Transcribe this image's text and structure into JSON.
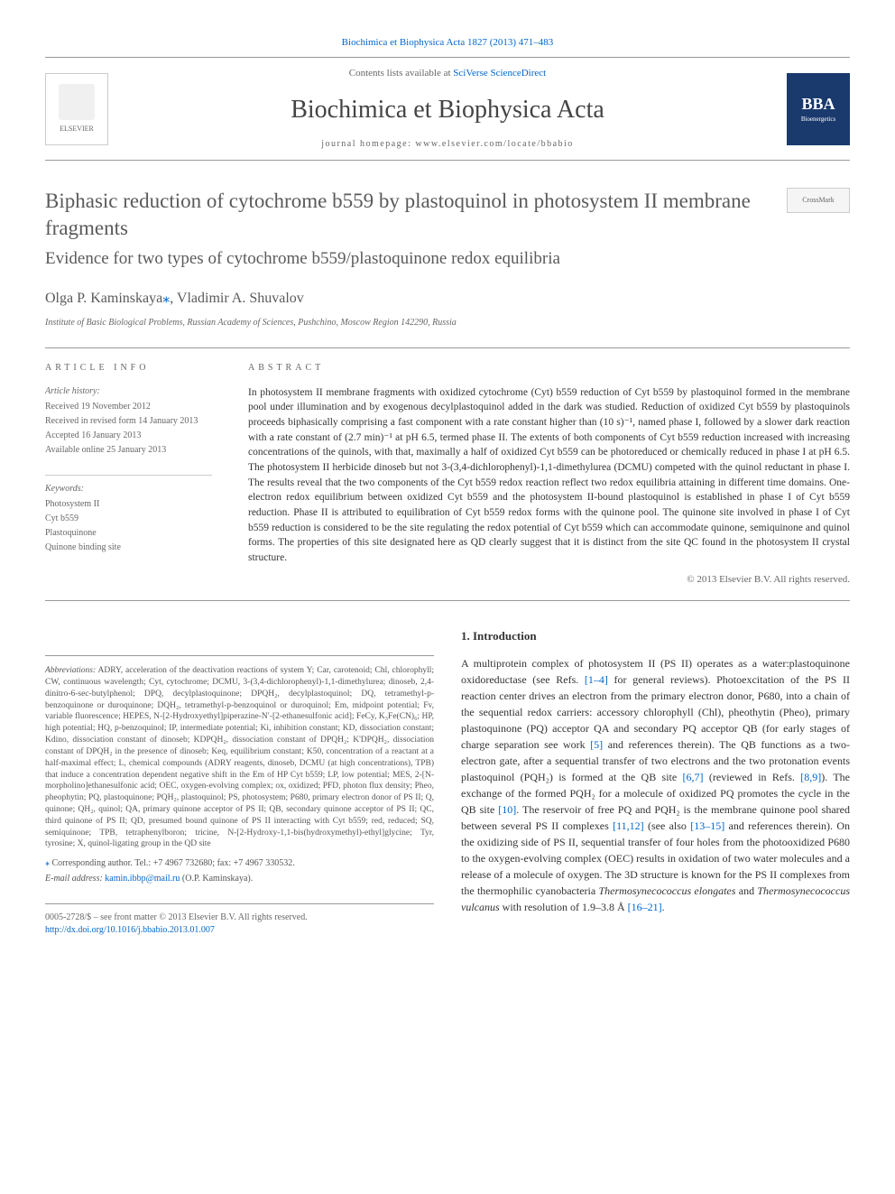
{
  "top_citation": "Biochimica et Biophysica Acta 1827 (2013) 471–483",
  "header": {
    "contents_available": "Contents lists available at",
    "sciverse": "SciVerse ScienceDirect",
    "journal_name": "Biochimica et Biophysica Acta",
    "homepage_prefix": "journal homepage:",
    "homepage_url": "www.elsevier.com/locate/bbabio",
    "elsevier_label": "ELSEVIER",
    "bba_label": "BBA",
    "bba_sub": "Bioenergetics"
  },
  "crossmark_label": "CrossMark",
  "title": "Biphasic reduction of cytochrome b559 by plastoquinol in photosystem II membrane fragments",
  "subtitle": "Evidence for two types of cytochrome b559/plastoquinone redox equilibria",
  "authors": "Olga P. Kaminskaya",
  "authors_star": "⁎",
  "authors_rest": ", Vladimir A. Shuvalov",
  "affiliation": "Institute of Basic Biological Problems, Russian Academy of Sciences, Pushchino, Moscow Region 142290, Russia",
  "article_info": {
    "heading": "ARTICLE INFO",
    "history_label": "Article history:",
    "received": "Received 19 November 2012",
    "revised": "Received in revised form 14 January 2013",
    "accepted": "Accepted 16 January 2013",
    "online": "Available online 25 January 2013",
    "keywords_label": "Keywords:",
    "keywords": [
      "Photosystem II",
      "Cyt b559",
      "Plastoquinone",
      "Quinone binding site"
    ]
  },
  "abstract": {
    "heading": "ABSTRACT",
    "text": "In photosystem II membrane fragments with oxidized cytochrome (Cyt) b559 reduction of Cyt b559 by plastoquinol formed in the membrane pool under illumination and by exogenous decylplastoquinol added in the dark was studied. Reduction of oxidized Cyt b559 by plastoquinols proceeds biphasically comprising a fast component with a rate constant higher than (10 s)⁻¹, named phase I, followed by a slower dark reaction with a rate constant of (2.7 min)⁻¹ at pH 6.5, termed phase II. The extents of both components of Cyt b559 reduction increased with increasing concentrations of the quinols, with that, maximally a half of oxidized Cyt b559 can be photoreduced or chemically reduced in phase I at pH 6.5. The photosystem II herbicide dinoseb but not 3-(3,4-dichlorophenyl)-1,1-dimethylurea (DCMU) competed with the quinol reductant in phase I. The results reveal that the two components of the Cyt b559 redox reaction reflect two redox equilibria attaining in different time domains. One-electron redox equilibrium between oxidized Cyt b559 and the photosystem II-bound plastoquinol is established in phase I of Cyt b559 reduction. Phase II is attributed to equilibration of Cyt b559 redox forms with the quinone pool. The quinone site involved in phase I of Cyt b559 reduction is considered to be the site regulating the redox potential of Cyt b559 which can accommodate quinone, semiquinone and quinol forms. The properties of this site designated here as QD clearly suggest that it is distinct from the site QC found in the photosystem II crystal structure.",
    "copyright": "© 2013 Elsevier B.V. All rights reserved."
  },
  "intro": {
    "heading": "1. Introduction",
    "p1_a": "A multiprotein complex of photosystem II (PS II) operates as a water:plastoquinone oxidoreductase (see Refs. ",
    "p1_ref1": "[1–4]",
    "p1_b": " for general reviews). Photoexcitation of the PS II reaction center drives an electron from the primary electron donor, P680, into a chain of the sequential redox carriers: accessory chlorophyll (Chl), pheothytin (Pheo), primary plastoquinone (PQ) acceptor QA and secondary PQ acceptor QB (for early stages of charge separation see work ",
    "p1_ref2": "[5]",
    "p1_c": " and references therein). The QB functions as a two-electron gate, after a sequential transfer of two electrons and the two protonation events plastoquinol (PQH₂) is formed at the QB site ",
    "p1_ref3": "[6,7]",
    "p1_d": " (reviewed in Refs. ",
    "p1_ref4": "[8,9]",
    "p1_e": "). The exchange of the formed PQH₂ for a molecule of oxidized PQ promotes the cycle in the QB site ",
    "p1_ref5": "[10]",
    "p1_f": ". The reservoir of free PQ and PQH₂ is the membrane quinone pool shared between several PS II complexes ",
    "p1_ref6": "[11,12]",
    "p1_g": " (see also ",
    "p1_ref7": "[13–15]",
    "p1_h": " and references therein). On the oxidizing side of PS II, sequential transfer of four holes from the photooxidized P680 to the oxygen-evolving complex (OEC) results in oxidation of two water molecules and a release of a molecule of oxygen. The 3D structure is known for the PS II complexes from the thermophilic cyanobacteria ",
    "p1_i": "Thermosynecococcus elongates",
    "p1_j": " and ",
    "p1_k": "Thermosynecococcus vulcanus",
    "p1_l": " with resolution of 1.9–3.8 Å ",
    "p1_ref8": "[16–21]",
    "p1_m": "."
  },
  "abbreviations": {
    "label": "Abbreviations:",
    "text": " ADRY, acceleration of the deactivation reactions of system Y; Car, carotenoid; Chl, chlorophyll; CW, continuous wavelength; Cyt, cytochrome; DCMU, 3-(3,4-dichlorophenyl)-1,1-dimethylurea; dinoseb, 2,4-dinitro-6-sec-butylphenol; DPQ, decylplastoquinone; DPQH₂, decylplastoquinol; DQ, tetramethyl-p-benzoquinone or duroquinone; DQH₂, tetramethyl-p-benzoquinol or duroquinol; Em, midpoint potential; Fv, variable fluorescence; HEPES, N-[2-Hydroxyethyl]piperazine-N′-[2-ethanesulfonic acid]; FeCy, K₃Fe(CN)₆; HP, high potential; HQ, p-benzoquinol; IP, intermediate potential; Ki, inhibition constant; KD, dissociation constant; Kdino, dissociation constant of dinoseb; KDPQH₂, dissociation constant of DPQH₂; K'DPQH₂, dissociation constant of DPQH₂ in the presence of dinoseb; Keq, equilibrium constant; K50, concentration of a reactant at a half-maximal effect; L, chemical compounds (ADRY reagents, dinoseb, DCMU (at high concentrations), TPB) that induce a concentration dependent negative shift in the Em of HP Cyt b559; LP, low potential; MES, 2-[N-morpholino]ethanesulfonic acid; OEC, oxygen-evolving complex; ox, oxidized; PFD, photon flux density; Pheo, pheophytin; PQ, plastoquinone; PQH₂, plastoquinol; PS, photosystem; P680, primary electron donor of PS II; Q, quinone; QH₂, quinol; QA, primary quinone acceptor of PS II; QB, secondary quinone acceptor of PS II; QC, third quinone of PS II; QD, presumed bound quinone of PS II interacting with Cyt b559; red, reduced; SQ, semiquinone; TPB, tetraphenylboron; tricine, N-[2-Hydroxy-1,1-bis(hydroxymethyl)-ethyl]glycine; Tyr, tyrosine; X, quinol-ligating group in the QD site"
  },
  "corresponding": {
    "star": "⁎",
    "text": " Corresponding author. Tel.: +7 4967 732680; fax: +7 4967 330532.",
    "email_label": "E-mail address:",
    "email": "kamin.ibbp@mail.ru",
    "email_author": " (O.P. Kaminskaya)."
  },
  "footer": {
    "line1": "0005-2728/$ – see front matter © 2013 Elsevier B.V. All rights reserved.",
    "doi": "http://dx.doi.org/10.1016/j.bbabio.2013.01.007"
  }
}
